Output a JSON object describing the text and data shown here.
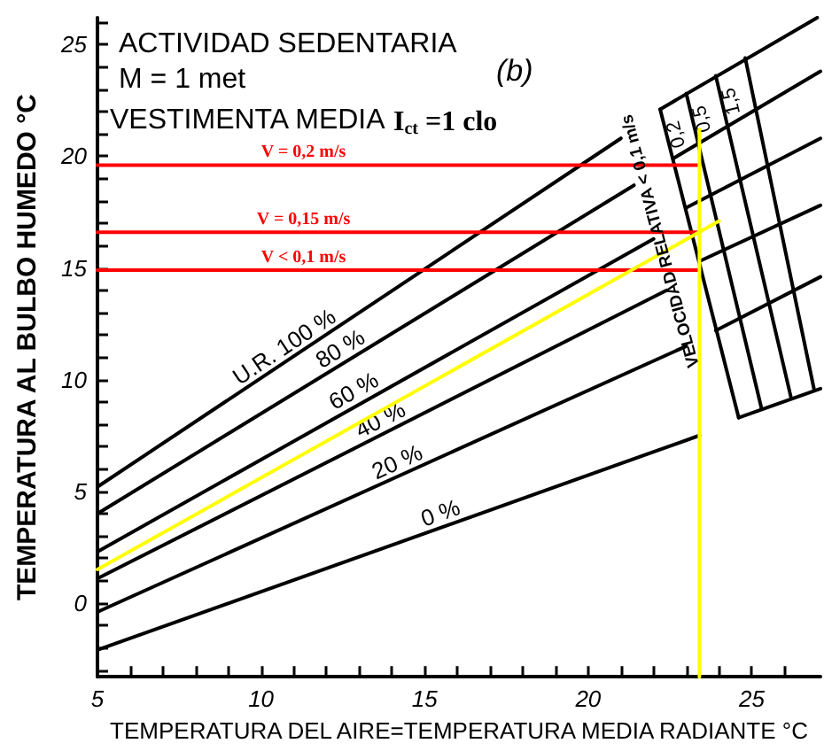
{
  "chart_data": {
    "type": "line",
    "title": "ACTIVIDAD SEDENTARIA",
    "subtitle": "M = 1 met",
    "xlabel": "TEMPERATURA DEL AIRE=TEMPERATURA MEDIA RADIANTE °C",
    "ylabel": "TEMPERATURA AL BULBO HUMEDO °C",
    "xlim": [
      5,
      27.1
    ],
    "ylim": [
      -3.3,
      26.2
    ],
    "xticks": [
      5,
      {
        "value": 6,
        "label": null
      },
      {
        "value": 7,
        "label": null
      },
      {
        "value": 8,
        "label": null
      },
      {
        "value": 9,
        "label": null
      },
      10,
      {
        "value": 11,
        "label": null
      },
      {
        "value": 12,
        "label": null
      },
      {
        "value": 13,
        "label": null
      },
      {
        "value": 14,
        "label": null
      },
      15,
      {
        "value": 16,
        "label": null
      },
      {
        "value": 17,
        "label": null
      },
      {
        "value": 18,
        "label": null
      },
      {
        "value": 19,
        "label": null
      },
      20,
      {
        "value": 21,
        "label": null
      },
      {
        "value": 22,
        "label": null
      },
      {
        "value": 23,
        "label": null
      },
      {
        "value": 24,
        "label": null
      },
      25,
      {
        "value": 26,
        "label": null
      }
    ],
    "yticks": [
      {
        "value": -3,
        "label": null
      },
      {
        "value": -2,
        "label": null
      },
      {
        "value": -1,
        "label": null
      },
      0,
      {
        "value": 1,
        "label": null
      },
      {
        "value": 2,
        "label": null
      },
      {
        "value": 3,
        "label": null
      },
      {
        "value": 4,
        "label": null
      },
      5,
      {
        "value": 6,
        "label": null
      },
      {
        "value": 7,
        "label": null
      },
      {
        "value": 8,
        "label": null
      },
      {
        "value": 9,
        "label": null
      },
      10,
      {
        "value": 11,
        "label": null
      },
      {
        "value": 12,
        "label": null
      },
      {
        "value": 13,
        "label": null
      },
      {
        "value": 14,
        "label": null
      },
      15,
      {
        "value": 16,
        "label": null
      },
      {
        "value": 17,
        "label": null
      },
      {
        "value": 18,
        "label": null
      },
      {
        "value": 19,
        "label": null
      },
      20,
      {
        "value": 21,
        "label": null
      },
      {
        "value": 22,
        "label": null
      },
      {
        "value": 23,
        "label": null
      },
      {
        "value": 24,
        "label": null
      },
      25,
      {
        "value": 26,
        "label": null
      }
    ],
    "grid": false,
    "series": [
      {
        "color": "#000000",
        "x": [
          5,
          21.0
        ],
        "values": [
          5.2,
          20.8
        ]
      },
      {
        "color": "#000000",
        "x": [
          5,
          21.4
        ],
        "values": [
          4.0,
          18.7
        ]
      },
      {
        "color": "#000000",
        "x": [
          5,
          22.0
        ],
        "values": [
          2.3,
          16.3
        ]
      },
      {
        "color": "#000000",
        "x": [
          5,
          22.4
        ],
        "values": [
          1.1,
          14.0
        ]
      },
      {
        "color": "#000000",
        "x": [
          5,
          23.0
        ],
        "values": [
          -0.4,
          11.5
        ]
      },
      {
        "color": "#000000",
        "x": [
          5,
          23.4
        ],
        "values": [
          -2.1,
          7.5
        ]
      },
      {
        "color": "#000000",
        "x": [
          22.2,
          27.0
        ],
        "values": [
          22.1,
          26.2
        ]
      },
      {
        "color": "#000000",
        "x": [
          22.6,
          27.1
        ],
        "values": [
          19.9,
          23.8
        ]
      },
      {
        "color": "#000000",
        "x": [
          23.0,
          27.1
        ],
        "values": [
          17.7,
          20.8
        ]
      },
      {
        "color": "#000000",
        "x": [
          23.4,
          27.1
        ],
        "values": [
          15.3,
          17.8
        ]
      },
      {
        "color": "#000000",
        "x": [
          23.9,
          27.1
        ],
        "values": [
          12.2,
          14.6
        ]
      },
      {
        "color": "#000000",
        "x": [
          24.6,
          27.1
        ],
        "values": [
          8.3,
          9.6
        ]
      },
      {
        "name": "0,2",
        "color": "#000000",
        "x": [
          22.2,
          24.6
        ],
        "values": [
          22.1,
          8.3
        ]
      },
      {
        "name": "0,5",
        "color": "#000000",
        "x": [
          23.0,
          25.3
        ],
        "values": [
          22.8,
          8.7
        ]
      },
      {
        "name": "1,5",
        "color": "#000000",
        "x": [
          23.9,
          26.2
        ],
        "values": [
          23.6,
          9.2
        ]
      },
      {
        "color": "#000000",
        "x": [
          24.8,
          26.9
        ],
        "values": [
          24.4,
          9.6
        ]
      },
      {
        "color": "#ff0000",
        "x": [
          5,
          23.4
        ],
        "values": [
          19.6,
          19.6
        ]
      },
      {
        "color": "#ff0000",
        "x": [
          5,
          23.4
        ],
        "values": [
          16.6,
          16.6
        ]
      },
      {
        "color": "#ff0000",
        "x": [
          5,
          23.4
        ],
        "values": [
          14.9,
          14.9
        ]
      },
      {
        "color": "#ffff00",
        "x": [
          5,
          24.0
        ],
        "values": [
          1.5,
          17.1
        ]
      },
      {
        "color": "#ffff00",
        "x": [
          23.4,
          23.4
        ],
        "values": [
          21.2,
          -3.3
        ]
      }
    ],
    "annotations": [
      "(b)",
      "VESTIMENTA MEDIA",
      "I$_{ct}$ =1 clo",
      "VELOCIDAD RELATIVA < 0,1 m/s",
      {
        "text": "U.R. 100 %",
        "x": 10.9,
        "y": 10.9
      },
      {
        "text": "80 %",
        "x": 12.6,
        "y": 10.8
      },
      {
        "text": "60 %",
        "x": 13.0,
        "y": 8.9
      },
      {
        "text": "40 %",
        "x": 13.8,
        "y": 7.6
      },
      {
        "text": "20 %",
        "x": 14.3,
        "y": 5.7
      },
      {
        "text": "0 %",
        "x": 15.6,
        "y": 3.4
      },
      {
        "text": "V = 0,2 m/s",
        "x": 11.3,
        "y": 19.6
      },
      {
        "text": "V = 0,15 m/s",
        "x": 11.3,
        "y": 16.6
      },
      {
        "text": "V < 0,1 m/s",
        "x": 11.3,
        "y": 14.9
      }
    ]
  }
}
